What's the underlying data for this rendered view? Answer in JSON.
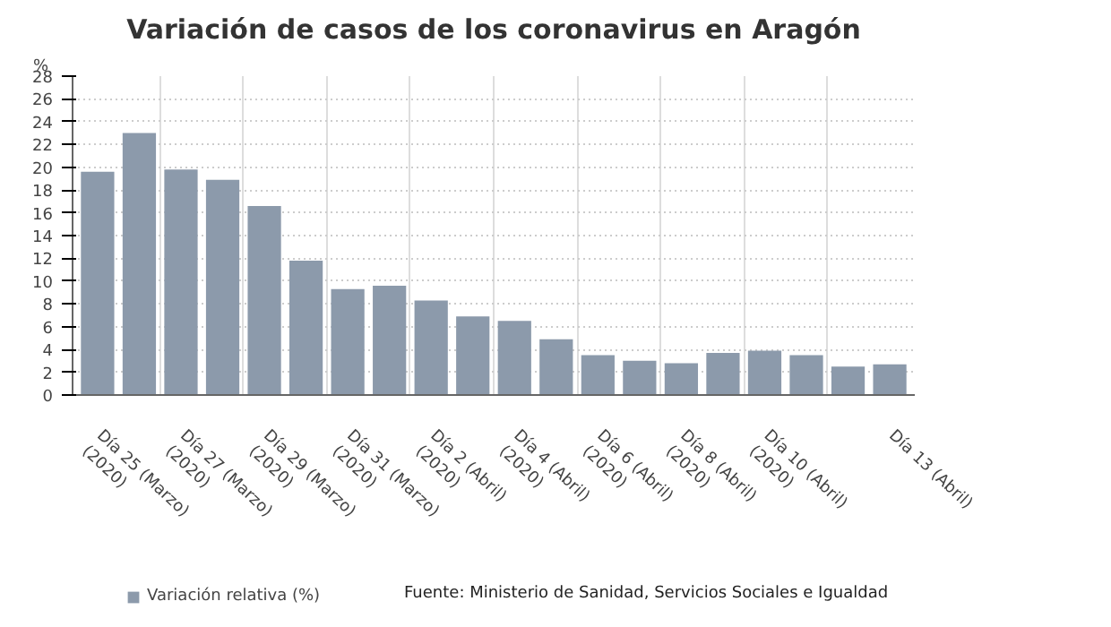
{
  "chart_data": {
    "type": "bar",
    "title": "Variación de casos de los coronavirus en Aragón",
    "ylabel": "%",
    "categories": [
      "Día 25 (Marzo) (2020)",
      null,
      "Día 27 (Marzo) (2020)",
      null,
      "Día 29 (Marzo) (2020)",
      null,
      "Día 31 (Marzo) (2020)",
      null,
      "Día 2 (Abril) (2020)",
      null,
      "Día 4 (Abril) (2020)",
      null,
      "Día 6 (Abril) (2020)",
      null,
      "Día 8 (Abril) (2020)",
      null,
      "Día 10 (Abril) (2020)",
      null,
      null,
      "Día 13 (Abril)"
    ],
    "series": [
      {
        "name": "Variación relativa (%)",
        "color": "#8c9aab",
        "values": [
          19.6,
          23.0,
          19.8,
          18.9,
          16.6,
          11.8,
          9.3,
          9.6,
          8.3,
          6.9,
          6.5,
          4.9,
          3.5,
          3.0,
          2.8,
          3.7,
          3.9,
          3.5,
          2.5,
          2.7
        ]
      }
    ],
    "ylim": [
      0,
      28
    ],
    "yticks": [
      0,
      2,
      4,
      6,
      8,
      10,
      12,
      14,
      16,
      18,
      20,
      22,
      24,
      26,
      28
    ],
    "grid": true,
    "legend": "bottom",
    "annotations": [
      "Fuente: Ministerio de Sanidad, Servicios Sociales e Igualdad"
    ]
  }
}
